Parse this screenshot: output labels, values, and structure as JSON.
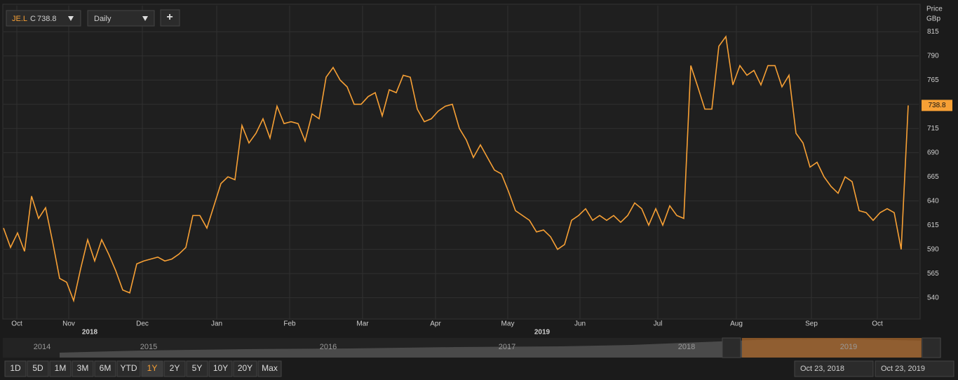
{
  "toolbar": {
    "symbol": "JE.L",
    "close_prefix": "C",
    "interval": "Daily",
    "add": "+"
  },
  "chart_data": {
    "type": "line",
    "y_axis_label": [
      "Price",
      "GBp"
    ],
    "series": [
      {
        "color": "#f7a035",
        "values": [
          612,
          592,
          607,
          588,
          645,
          622,
          633,
          598,
          560,
          556,
          537,
          570,
          600,
          578,
          600,
          585,
          568,
          548,
          545,
          575,
          578,
          580,
          582,
          578,
          580,
          585,
          592,
          625,
          625,
          612,
          635,
          658,
          665,
          662,
          718,
          700,
          710,
          725,
          705,
          738,
          720,
          722,
          720,
          702,
          730,
          725,
          768,
          778,
          765,
          758,
          740,
          740,
          748,
          752,
          728,
          755,
          752,
          770,
          768,
          735,
          722,
          725,
          733,
          738,
          740,
          715,
          703,
          685,
          698,
          685,
          672,
          668,
          650,
          630,
          625,
          620,
          608,
          610,
          603,
          590,
          595,
          620,
          625,
          632,
          620,
          625,
          620,
          625,
          618,
          625,
          638,
          632,
          615,
          632,
          615,
          635,
          625,
          622,
          780,
          758,
          735,
          735,
          800,
          810,
          760,
          780,
          770,
          775,
          760,
          780,
          780,
          758,
          770,
          710,
          700,
          675,
          680,
          665,
          655,
          648,
          665,
          660,
          630,
          628,
          620,
          628,
          632,
          628,
          590,
          738.8
        ]
      }
    ],
    "ylim": [
      518,
      842
    ],
    "yticks": [
      540,
      565,
      590,
      615,
      640,
      665,
      690,
      715,
      740,
      765,
      790,
      815
    ],
    "xlim": [
      0,
      130.5
    ],
    "xticks": [
      {
        "value": 1.9,
        "label": "Oct"
      },
      {
        "value": 9.3,
        "label": "Nov"
      },
      {
        "value": 19.8,
        "label": "Dec"
      },
      {
        "value": 30.4,
        "label": "Jan"
      },
      {
        "value": 40.8,
        "label": "Feb"
      },
      {
        "value": 51.2,
        "label": "Mar"
      },
      {
        "value": 61.6,
        "label": "Apr"
      },
      {
        "value": 71.9,
        "label": "May"
      },
      {
        "value": 82.2,
        "label": "Jun"
      },
      {
        "value": 93.3,
        "label": "Jul"
      },
      {
        "value": 104.5,
        "label": "Aug"
      },
      {
        "value": 115.2,
        "label": "Sep"
      },
      {
        "value": 124.6,
        "label": "Oct"
      }
    ],
    "year_ticks": [
      {
        "value": 12.3,
        "label": "2018"
      },
      {
        "value": 76.8,
        "label": "2019"
      }
    ],
    "grid": true
  },
  "navigator": {
    "years": [
      "2014",
      "2015",
      "2016",
      "2017",
      "2018",
      "2019"
    ]
  },
  "range_buttons": [
    "1D",
    "5D",
    "1M",
    "3M",
    "6M",
    "YTD",
    "1Y",
    "2Y",
    "5Y",
    "10Y",
    "20Y",
    "Max"
  ],
  "active_range": "1Y",
  "date_from": "Oct 23, 2018",
  "date_to": "Oct 23, 2019"
}
